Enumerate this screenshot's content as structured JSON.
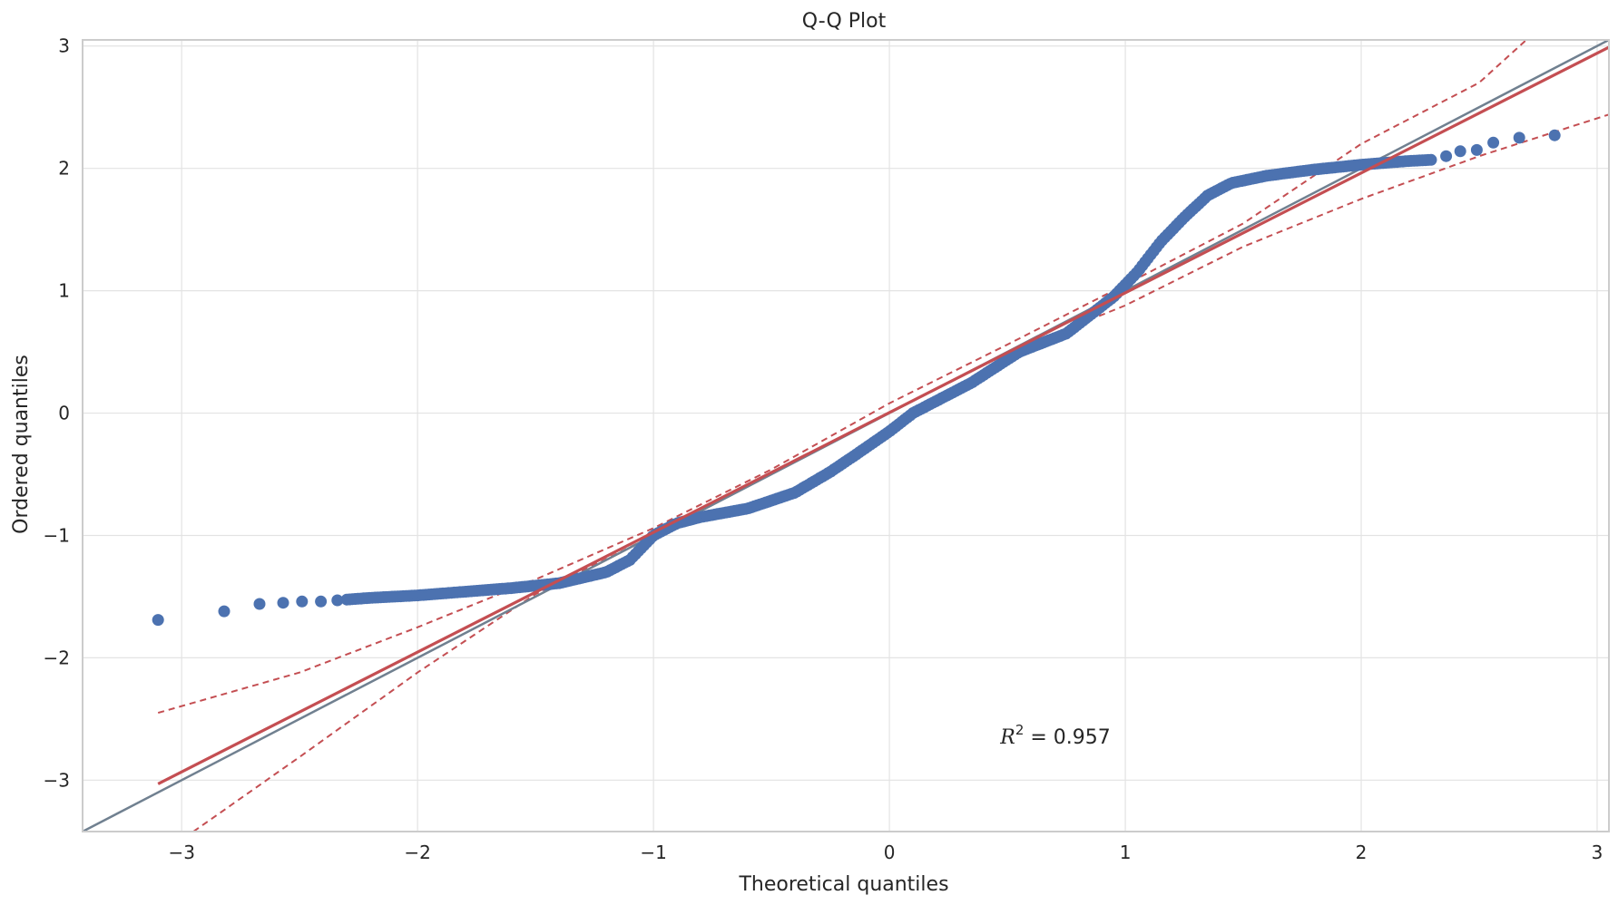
{
  "chart_data": {
    "type": "scatter",
    "title": "Q-Q Plot",
    "xlabel": "Theoretical quantiles",
    "ylabel": "Ordered quantiles",
    "xlim": [
      -3.42,
      3.05
    ],
    "ylim": [
      -3.42,
      3.05
    ],
    "xticks": [
      -3,
      -2,
      -1,
      0,
      1,
      2,
      3
    ],
    "yticks": [
      -3,
      -2,
      -1,
      0,
      1,
      2,
      3
    ],
    "xtick_labels": [
      "−3",
      "−2",
      "−1",
      "0",
      "1",
      "2",
      "3"
    ],
    "ytick_labels": [
      "−3",
      "−2",
      "−1",
      "0",
      "1",
      "2",
      "3"
    ],
    "grid": true,
    "annotation": {
      "name": "R",
      "sup": "2",
      "rest": " = 0.957",
      "x": 0.47,
      "y": -2.7
    },
    "colors": {
      "points": "#4c72b0",
      "fit": "#c44e52",
      "reference": "#708090",
      "grid": "#e3e3e3",
      "spine": "#cccccc"
    },
    "series": [
      {
        "kind": "sample_quantiles",
        "x_range": [
          -3.1,
          2.82
        ],
        "x_knots": [
          -3.1,
          -2.82,
          -2.67,
          -2.57,
          -2.49,
          -2.41,
          -2.34,
          -2.2,
          -2.0,
          -1.8,
          -1.6,
          -1.4,
          -1.2,
          -1.1,
          -1.0,
          -0.9,
          -0.8,
          -0.6,
          -0.4,
          -0.25,
          -0.15,
          0.0,
          0.1,
          0.2,
          0.35,
          0.55,
          0.75,
          0.85,
          0.95,
          1.05,
          1.15,
          1.25,
          1.35,
          1.45,
          1.6,
          1.8,
          2.0,
          2.2,
          2.3,
          2.36,
          2.42,
          2.49,
          2.56,
          2.67,
          2.82
        ],
        "y_knots": [
          -1.69,
          -1.62,
          -1.56,
          -1.55,
          -1.54,
          -1.54,
          -1.53,
          -1.51,
          -1.49,
          -1.46,
          -1.43,
          -1.39,
          -1.3,
          -1.2,
          -1.0,
          -0.9,
          -0.85,
          -0.78,
          -0.65,
          -0.48,
          -0.35,
          -0.15,
          0.0,
          0.1,
          0.25,
          0.5,
          0.65,
          0.8,
          0.95,
          1.15,
          1.4,
          1.6,
          1.78,
          1.88,
          1.94,
          1.99,
          2.03,
          2.06,
          2.07,
          2.1,
          2.14,
          2.15,
          2.21,
          2.25,
          2.27
        ]
      },
      {
        "kind": "fit_line",
        "x": [
          -3.1,
          3.05
        ],
        "y": [
          -3.03,
          2.99
        ]
      },
      {
        "kind": "reference_line",
        "x": [
          -3.42,
          3.05
        ],
        "y": [
          -3.42,
          3.05
        ]
      },
      {
        "kind": "upper_confidence_band",
        "x": [
          -3.1,
          -2.5,
          -2.0,
          -1.5,
          -1.0,
          -0.5,
          0.0,
          0.5,
          1.0,
          1.5,
          2.0,
          2.5,
          2.7
        ],
        "y": [
          -2.45,
          -2.12,
          -1.75,
          -1.36,
          -0.94,
          -0.46,
          0.08,
          0.56,
          1.05,
          1.55,
          2.2,
          2.7,
          3.05
        ]
      },
      {
        "kind": "lower_confidence_band",
        "x": [
          -2.95,
          -2.5,
          -2.0,
          -1.5,
          -1.0,
          -0.5,
          0.0,
          0.5,
          1.0,
          1.5,
          2.0,
          2.5,
          3.05
        ],
        "y": [
          -3.42,
          -2.81,
          -2.12,
          -1.48,
          -1.0,
          -0.5,
          0.0,
          0.49,
          0.88,
          1.36,
          1.75,
          2.1,
          2.44
        ]
      }
    ]
  }
}
